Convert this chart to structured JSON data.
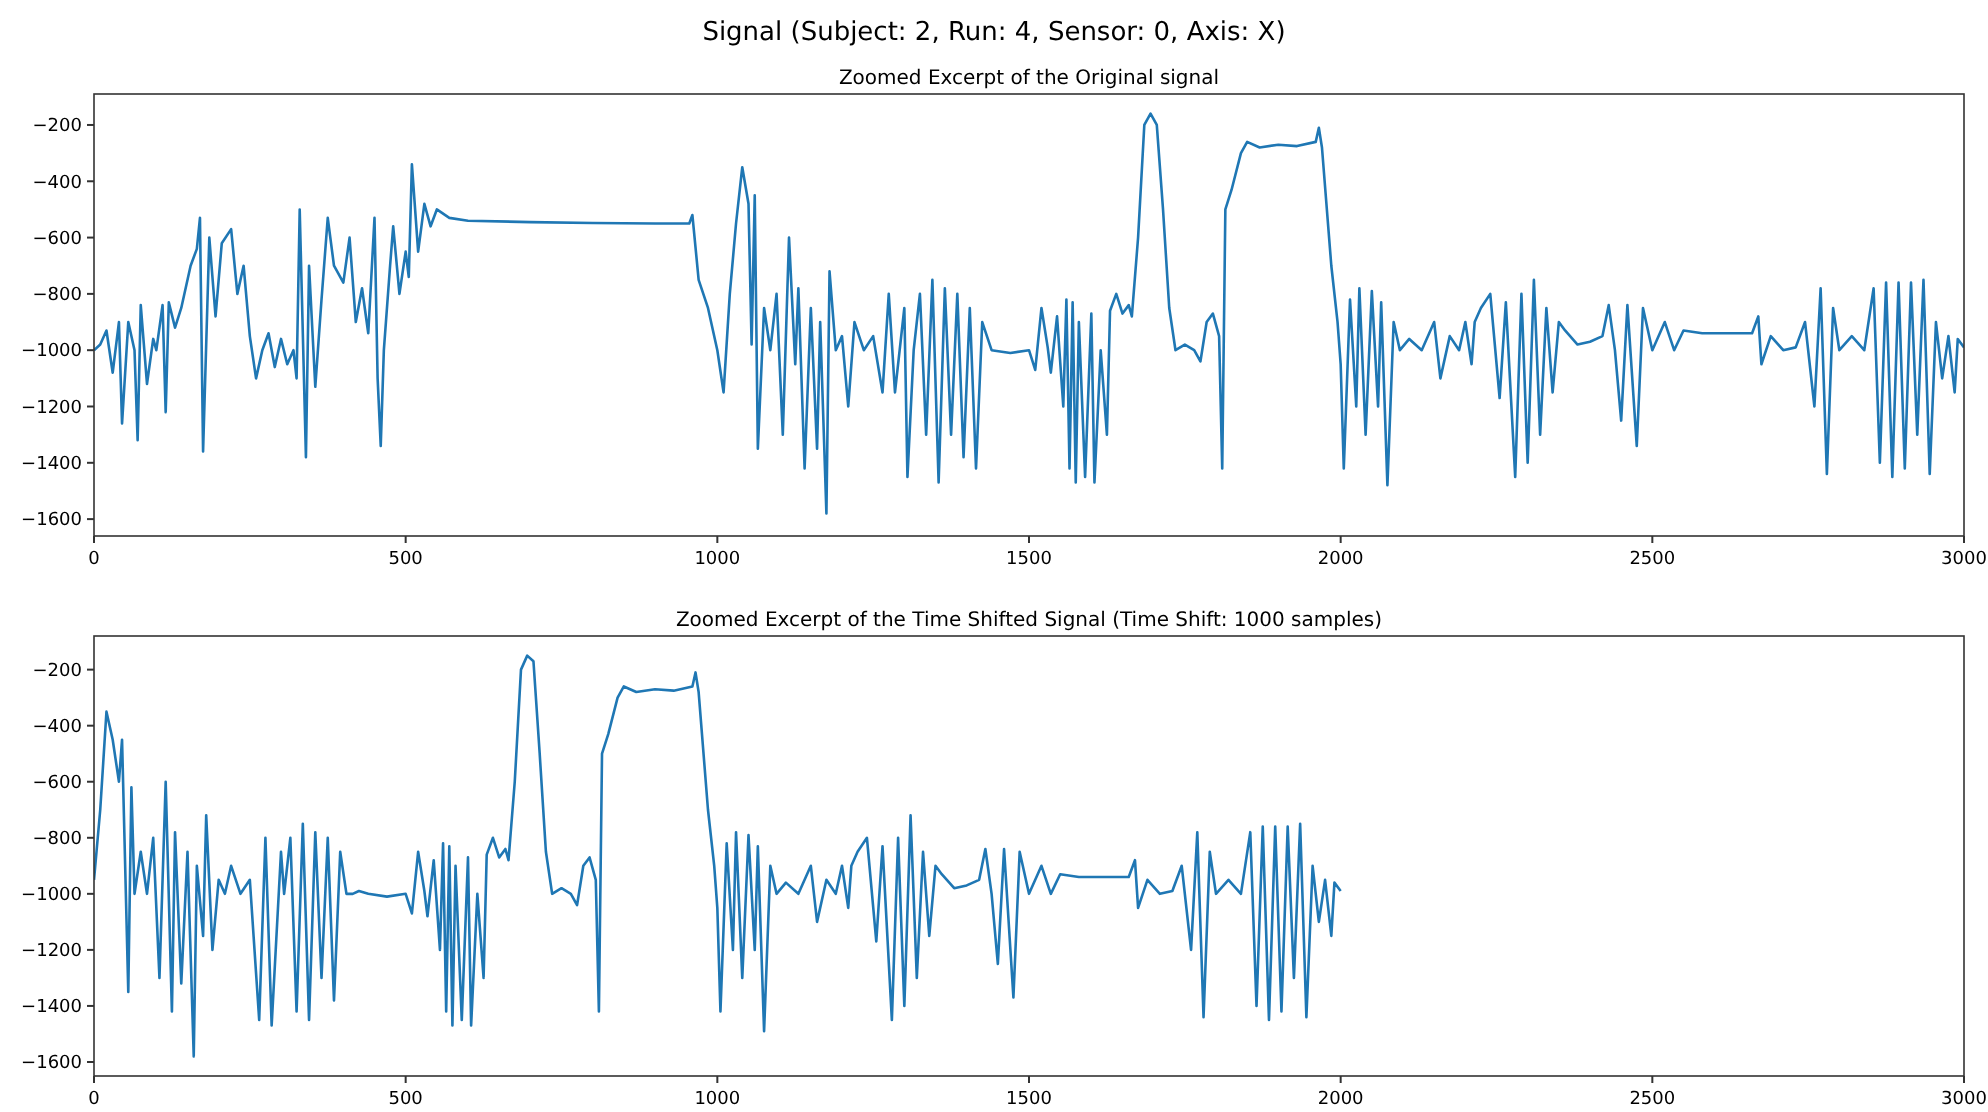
{
  "chart_data": [
    {
      "type": "line",
      "title": "Signal (Subject: 2, Run: 4, Sensor: 0, Axis: X)",
      "subtitle": "Zoomed Excerpt of the Original signal",
      "xlim": [
        0,
        3000
      ],
      "xticks": [
        0,
        500,
        1000,
        1500,
        2000,
        2500,
        3000
      ],
      "ylim": [
        -1660,
        -90
      ],
      "yticks": [
        -200,
        -400,
        -600,
        -800,
        -1000,
        -1200,
        -1400,
        -1600
      ],
      "grid": false,
      "marker": "none",
      "line_style": "solid",
      "series": [
        {
          "color": "#1f77b4",
          "x": [
            0,
            10,
            20,
            30,
            40,
            45,
            55,
            65,
            70,
            75,
            85,
            95,
            100,
            110,
            115,
            120,
            130,
            140,
            155,
            165,
            170,
            175,
            185,
            195,
            205,
            220,
            230,
            240,
            250,
            260,
            270,
            280,
            290,
            300,
            310,
            320,
            325,
            330,
            340,
            345,
            355,
            365,
            375,
            385,
            400,
            410,
            420,
            430,
            440,
            450,
            455,
            460,
            465,
            475,
            480,
            490,
            500,
            505,
            510,
            520,
            530,
            540,
            550,
            570,
            600,
            700,
            800,
            900,
            955,
            960,
            970,
            985,
            1000,
            1010,
            1020,
            1030,
            1040,
            1050,
            1055,
            1060,
            1065,
            1075,
            1085,
            1095,
            1105,
            1115,
            1125,
            1130,
            1140,
            1150,
            1160,
            1165,
            1175,
            1180,
            1190,
            1200,
            1210,
            1220,
            1235,
            1250,
            1265,
            1275,
            1285,
            1300,
            1305,
            1315,
            1325,
            1335,
            1345,
            1355,
            1365,
            1375,
            1385,
            1395,
            1405,
            1415,
            1425,
            1440,
            1470,
            1500,
            1510,
            1520,
            1530,
            1535,
            1545,
            1555,
            1560,
            1565,
            1570,
            1575,
            1580,
            1590,
            1600,
            1605,
            1615,
            1625,
            1630,
            1640,
            1650,
            1660,
            1665,
            1675,
            1685,
            1695,
            1705,
            1715,
            1725,
            1735,
            1750,
            1765,
            1775,
            1785,
            1795,
            1805,
            1810,
            1815,
            1825,
            1840,
            1850,
            1870,
            1900,
            1930,
            1960,
            1965,
            1970,
            1985,
            1995,
            2000,
            2005,
            2015,
            2025,
            2030,
            2040,
            2050,
            2060,
            2065,
            2075,
            2085,
            2095,
            2110,
            2130,
            2150,
            2160,
            2175,
            2190,
            2200,
            2210,
            2215,
            2225,
            2240,
            2255,
            2265,
            2280,
            2290,
            2300,
            2310,
            2320,
            2330,
            2340,
            2350,
            2360,
            2380,
            2400,
            2420,
            2430,
            2440,
            2450,
            2460,
            2475,
            2485,
            2500,
            2520,
            2535,
            2550,
            2580,
            2620,
            2660,
            2670,
            2675,
            2690,
            2710,
            2730,
            2745,
            2760,
            2770,
            2780,
            2790,
            2800,
            2820,
            2840,
            2855,
            2865,
            2875,
            2885,
            2895,
            2905,
            2915,
            2925,
            2935,
            2945,
            2955,
            2965,
            2975,
            2985,
            2990,
            3000
          ],
          "values": [
            -1000,
            -980,
            -930,
            -1080,
            -900,
            -1260,
            -900,
            -1000,
            -1320,
            -840,
            -1120,
            -960,
            -1000,
            -840,
            -1220,
            -830,
            -920,
            -850,
            -700,
            -640,
            -530,
            -1360,
            -600,
            -880,
            -620,
            -570,
            -800,
            -700,
            -950,
            -1100,
            -1000,
            -940,
            -1060,
            -960,
            -1050,
            -1000,
            -1100,
            -500,
            -1380,
            -700,
            -1130,
            -820,
            -530,
            -700,
            -760,
            -600,
            -900,
            -780,
            -940,
            -530,
            -1100,
            -1340,
            -1000,
            -700,
            -560,
            -800,
            -650,
            -740,
            -340,
            -650,
            -480,
            -560,
            -500,
            -530,
            -540,
            -545,
            -548,
            -550,
            -550,
            -520,
            -750,
            -850,
            -1000,
            -1150,
            -800,
            -550,
            -350,
            -480,
            -980,
            -450,
            -1350,
            -850,
            -1000,
            -800,
            -1300,
            -600,
            -1050,
            -780,
            -1420,
            -850,
            -1350,
            -900,
            -1580,
            -720,
            -1000,
            -950,
            -1200,
            -900,
            -1000,
            -950,
            -1150,
            -800,
            -1150,
            -850,
            -1450,
            -1000,
            -800,
            -1300,
            -750,
            -1470,
            -780,
            -1300,
            -800,
            -1380,
            -850,
            -1420,
            -900,
            -1000,
            -1010,
            -1000,
            -1070,
            -850,
            -990,
            -1080,
            -880,
            -1200,
            -820,
            -1420,
            -830,
            -1470,
            -900,
            -1450,
            -870,
            -1470,
            -1000,
            -1300,
            -860,
            -800,
            -870,
            -840,
            -880,
            -600,
            -200,
            -160,
            -200,
            -500,
            -850,
            -1000,
            -980,
            -1000,
            -1040,
            -900,
            -870,
            -950,
            -1420,
            -500,
            -430,
            -300,
            -260,
            -280,
            -270,
            -275,
            -260,
            -210,
            -280,
            -700,
            -900,
            -1050,
            -1420,
            -820,
            -1200,
            -780,
            -1300,
            -790,
            -1200,
            -830,
            -1480,
            -900,
            -1000,
            -960,
            -1000,
            -900,
            -1100,
            -950,
            -1000,
            -900,
            -1050,
            -900,
            -850,
            -800,
            -1170,
            -830,
            -1450,
            -800,
            -1400,
            -750,
            -1300,
            -850,
            -1150,
            -900,
            -930,
            -980,
            -970,
            -950,
            -840,
            -1000,
            -1250,
            -840,
            -1340,
            -850,
            -1000,
            -900,
            -1000,
            -930,
            -940,
            -940,
            -940,
            -880,
            -1050,
            -950,
            -1000,
            -990,
            -900,
            -1200,
            -780,
            -1440,
            -850,
            -1000,
            -950,
            -1000,
            -780,
            -1400,
            -760,
            -1450,
            -760,
            -1420,
            -760,
            -1300,
            -750,
            -1440,
            -900,
            -1100,
            -950,
            -1150,
            -960,
            -990
          ]
        }
      ]
    },
    {
      "type": "line",
      "title": "Zoomed Excerpt of the Time Shifted Signal (Time Shift: 1000 samples)",
      "xlim": [
        0,
        3000
      ],
      "xticks": [
        0,
        500,
        1000,
        1500,
        2000,
        2500,
        3000
      ],
      "ylim": [
        -1650,
        -80
      ],
      "yticks": [
        -200,
        -400,
        -600,
        -800,
        -1000,
        -1200,
        -1400,
        -1600
      ],
      "grid": false,
      "marker": "none",
      "line_style": "solid",
      "series": [
        {
          "color": "#1f77b4",
          "x": [
            0,
            10,
            20,
            30,
            40,
            45,
            55,
            60,
            65,
            75,
            85,
            95,
            105,
            115,
            125,
            130,
            140,
            150,
            160,
            165,
            175,
            180,
            190,
            200,
            210,
            220,
            235,
            250,
            265,
            275,
            285,
            300,
            305,
            315,
            325,
            335,
            345,
            355,
            365,
            375,
            385,
            395,
            405,
            415,
            425,
            440,
            470,
            500,
            510,
            520,
            530,
            535,
            545,
            555,
            560,
            565,
            570,
            575,
            580,
            590,
            600,
            605,
            615,
            625,
            630,
            640,
            650,
            660,
            665,
            675,
            685,
            695,
            705,
            715,
            725,
            735,
            750,
            765,
            775,
            785,
            795,
            805,
            810,
            815,
            825,
            840,
            850,
            870,
            900,
            930,
            960,
            965,
            970,
            985,
            995,
            1000,
            1005,
            1015,
            1025,
            1030,
            1040,
            1050,
            1060,
            1065,
            1075,
            1085,
            1095,
            1110,
            1130,
            1150,
            1160,
            1175,
            1190,
            1200,
            1210,
            1215,
            1225,
            1240,
            1255,
            1265,
            1280,
            1290,
            1300,
            1310,
            1320,
            1330,
            1340,
            1350,
            1360,
            1380,
            1400,
            1420,
            1430,
            1440,
            1450,
            1460,
            1475,
            1485,
            1500,
            1520,
            1535,
            1550,
            1580,
            1620,
            1660,
            1670,
            1675,
            1690,
            1710,
            1730,
            1745,
            1760,
            1770,
            1780,
            1790,
            1800,
            1820,
            1840,
            1855,
            1865,
            1875,
            1885,
            1895,
            1905,
            1915,
            1925,
            1935,
            1945,
            1955,
            1965,
            1975,
            1985,
            1990,
            2000
          ],
          "values": [
            -950,
            -700,
            -350,
            -450,
            -600,
            -450,
            -1350,
            -620,
            -1000,
            -850,
            -1000,
            -800,
            -1300,
            -600,
            -1420,
            -780,
            -1320,
            -850,
            -1580,
            -900,
            -1150,
            -720,
            -1200,
            -950,
            -1000,
            -900,
            -1000,
            -950,
            -1450,
            -800,
            -1470,
            -850,
            -1000,
            -800,
            -1420,
            -750,
            -1450,
            -780,
            -1300,
            -800,
            -1380,
            -850,
            -1000,
            -1000,
            -990,
            -1000,
            -1010,
            -1000,
            -1070,
            -850,
            -990,
            -1080,
            -880,
            -1200,
            -820,
            -1420,
            -830,
            -1470,
            -900,
            -1450,
            -870,
            -1470,
            -1000,
            -1300,
            -860,
            -800,
            -870,
            -840,
            -880,
            -600,
            -200,
            -150,
            -170,
            -500,
            -850,
            -1000,
            -980,
            -1000,
            -1040,
            -900,
            -870,
            -950,
            -1420,
            -500,
            -430,
            -300,
            -260,
            -280,
            -270,
            -275,
            -260,
            -210,
            -280,
            -700,
            -900,
            -1050,
            -1420,
            -820,
            -1200,
            -780,
            -1300,
            -790,
            -1200,
            -830,
            -1490,
            -900,
            -1000,
            -960,
            -1000,
            -900,
            -1100,
            -950,
            -1000,
            -900,
            -1050,
            -900,
            -850,
            -800,
            -1170,
            -830,
            -1450,
            -800,
            -1400,
            -720,
            -1300,
            -850,
            -1150,
            -900,
            -930,
            -980,
            -970,
            -950,
            -840,
            -1000,
            -1250,
            -840,
            -1370,
            -850,
            -1000,
            -900,
            -1000,
            -930,
            -940,
            -940,
            -940,
            -880,
            -1050,
            -950,
            -1000,
            -990,
            -900,
            -1200,
            -780,
            -1440,
            -850,
            -1000,
            -950,
            -1000,
            -780,
            -1400,
            -760,
            -1450,
            -760,
            -1420,
            -760,
            -1300,
            -750,
            -1440,
            -900,
            -1100,
            -950,
            -1150,
            -960,
            -990
          ]
        }
      ]
    }
  ]
}
